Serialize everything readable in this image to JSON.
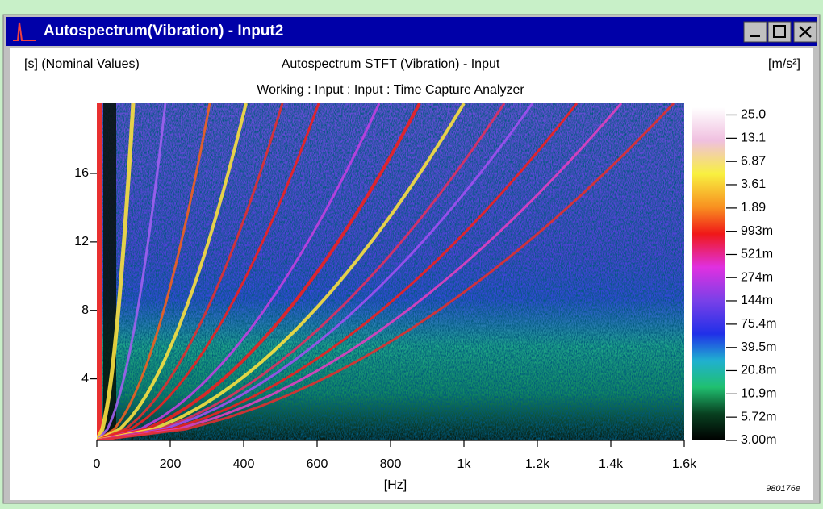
{
  "window": {
    "title": "Autospectrum(Vibration) - Input2"
  },
  "chart_data": {
    "type": "spectrogram",
    "title": "Autospectrum STFT (Vibration) - Input",
    "subtitle": "Working : Input : Input : Time Capture Analyzer",
    "y_label": "[s] (Nominal Values)",
    "x_label": "[Hz]",
    "colorbar_label": "[m/s²]",
    "xlim": [
      0,
      1600
    ],
    "xticks": [
      0,
      200,
      400,
      600,
      800,
      {
        "value": 1000,
        "label": "1k"
      },
      {
        "value": 1200,
        "label": "1.2k"
      },
      {
        "value": 1400,
        "label": "1.4k"
      },
      {
        "value": 1600,
        "label": "1.6k"
      }
    ],
    "ylim": [
      0.4,
      20.1
    ],
    "yticks": [
      4,
      8,
      12,
      16
    ],
    "color_log": true,
    "clim": [
      0.003,
      30.9
    ],
    "cticks": [
      {
        "value": 25.0,
        "label": "25.0"
      },
      13.1,
      6.87,
      3.61,
      1.89,
      {
        "value": 0.993,
        "label": "993m"
      },
      {
        "value": 0.521,
        "label": "521m"
      },
      {
        "value": 0.274,
        "label": "274m"
      },
      {
        "value": 0.144,
        "label": "144m"
      },
      {
        "value": 0.0754,
        "label": "75.4m"
      },
      {
        "value": 0.0395,
        "label": "39.5m"
      },
      {
        "value": 0.0208,
        "label": "20.8m"
      },
      {
        "value": 0.0109,
        "label": "10.9m"
      },
      {
        "value": 0.00572,
        "label": "5.72m"
      },
      {
        "value": 0.003,
        "label": "3.00m"
      }
    ]
  },
  "figure_id": "980176e"
}
